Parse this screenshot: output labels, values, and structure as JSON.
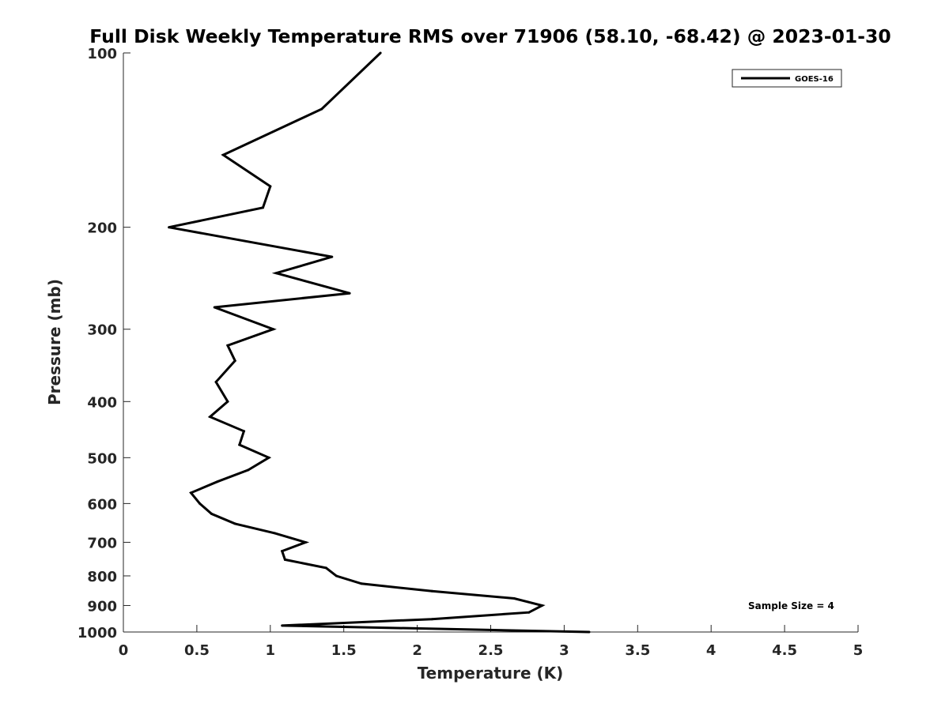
{
  "chart_data": {
    "type": "line",
    "title": "Full Disk Weekly Temperature RMS over 71906 (58.10, -68.42) @ 2023-01-30",
    "xlabel": "Temperature (K)",
    "ylabel": "Pressure (mb)",
    "xlim": [
      0,
      5
    ],
    "ylim": [
      100,
      1000
    ],
    "y_scale": "log",
    "y_reversed": true,
    "x_ticks": [
      "0",
      "0.5",
      "1",
      "1.5",
      "2",
      "2.5",
      "3",
      "3.5",
      "4",
      "4.5",
      "5"
    ],
    "y_ticks": [
      "100",
      "200",
      "300",
      "400",
      "500",
      "600",
      "700",
      "800",
      "900",
      "1000"
    ],
    "grid": false,
    "legend_position": "top-right",
    "annotation": "Sample Size = 4",
    "series": [
      {
        "name": "GOES-16",
        "color": "#000000",
        "points": [
          {
            "x": 1.75,
            "y": 100
          },
          {
            "x": 1.35,
            "y": 125
          },
          {
            "x": 0.68,
            "y": 150
          },
          {
            "x": 1.0,
            "y": 170
          },
          {
            "x": 0.95,
            "y": 185
          },
          {
            "x": 0.31,
            "y": 200
          },
          {
            "x": 1.42,
            "y": 225
          },
          {
            "x": 1.04,
            "y": 240
          },
          {
            "x": 1.54,
            "y": 260
          },
          {
            "x": 0.62,
            "y": 275
          },
          {
            "x": 1.02,
            "y": 300
          },
          {
            "x": 0.71,
            "y": 320
          },
          {
            "x": 0.76,
            "y": 340
          },
          {
            "x": 0.63,
            "y": 370
          },
          {
            "x": 0.71,
            "y": 400
          },
          {
            "x": 0.59,
            "y": 425
          },
          {
            "x": 0.82,
            "y": 450
          },
          {
            "x": 0.79,
            "y": 475
          },
          {
            "x": 0.99,
            "y": 500
          },
          {
            "x": 0.85,
            "y": 525
          },
          {
            "x": 0.64,
            "y": 550
          },
          {
            "x": 0.46,
            "y": 575
          },
          {
            "x": 0.52,
            "y": 600
          },
          {
            "x": 0.6,
            "y": 625
          },
          {
            "x": 0.76,
            "y": 650
          },
          {
            "x": 1.03,
            "y": 675
          },
          {
            "x": 1.24,
            "y": 700
          },
          {
            "x": 1.08,
            "y": 725
          },
          {
            "x": 1.1,
            "y": 750
          },
          {
            "x": 1.38,
            "y": 775
          },
          {
            "x": 1.45,
            "y": 800
          },
          {
            "x": 1.62,
            "y": 825
          },
          {
            "x": 2.1,
            "y": 850
          },
          {
            "x": 2.66,
            "y": 875
          },
          {
            "x": 2.85,
            "y": 900
          },
          {
            "x": 2.76,
            "y": 925
          },
          {
            "x": 2.1,
            "y": 950
          },
          {
            "x": 1.08,
            "y": 975
          },
          {
            "x": 3.17,
            "y": 1000
          }
        ]
      }
    ]
  }
}
